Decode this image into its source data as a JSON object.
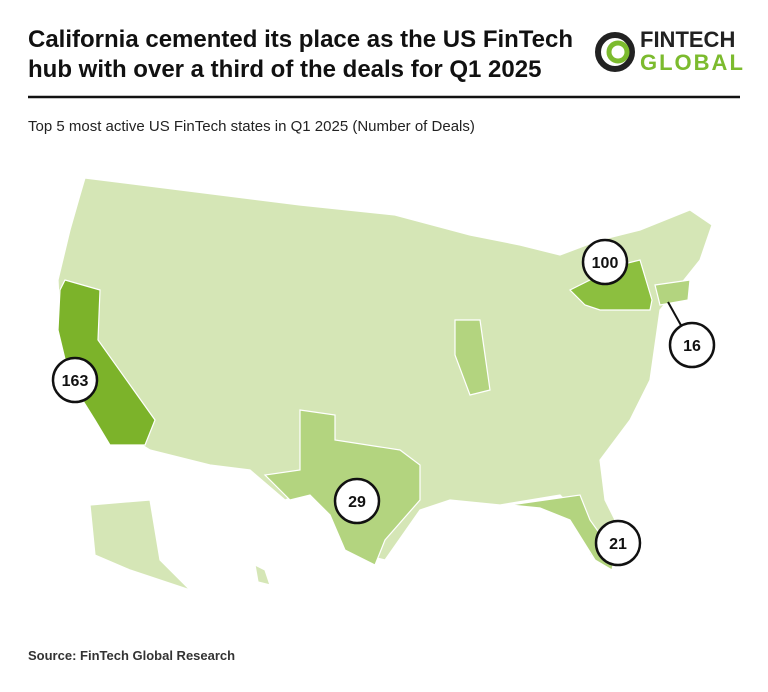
{
  "header": {
    "title_lines": [
      "California cemented its place as the US FinTech",
      "hub with over a third of the deals for Q1 2025"
    ],
    "subtitle": "Top 5 most active US FinTech states in Q1 2025 (Number of Deals)"
  },
  "logo": {
    "line1": "FINTECH",
    "line2": "GLOBAL"
  },
  "map": {
    "callouts": [
      163,
      100,
      16,
      29,
      21
    ]
  },
  "footer": {
    "source": "Source: FinTech Global Research"
  }
}
